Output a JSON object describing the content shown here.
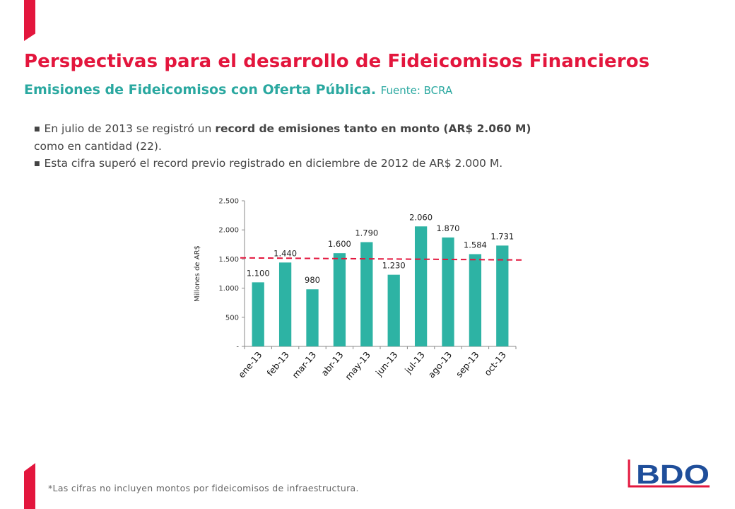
{
  "header": {
    "title": "Perspectivas para el desarrollo de Fideicomisos Financieros",
    "subtitle": "Emisiones de Fideicomisos con Oferta Pública.",
    "source": "Fuente: BCRA"
  },
  "bullets": {
    "b1_part1": "En julio de 2013 se registró un ",
    "b1_bold": "record de emisiones tanto en monto (AR$ 2.060 M)",
    "b1_part2": "como en cantidad (22).",
    "b2": "Esta cifra superó el record previo registrado en diciembre de 2012 de AR$ 2.000 M."
  },
  "chart_data": {
    "type": "bar",
    "categories": [
      "ene-13",
      "feb-13",
      "mar-13",
      "abr-13",
      "may-13",
      "jun-13",
      "jul-13",
      "ago-13",
      "sep-13",
      "oct-13"
    ],
    "values": [
      1100,
      1440,
      980,
      1600,
      1790,
      1230,
      2060,
      1870,
      1584,
      1731
    ],
    "data_labels": [
      "1.100",
      "1.440",
      "980",
      "1.600",
      "1.790",
      "1.230",
      "2.060",
      "1.870",
      "1.584",
      "1.731"
    ],
    "ylabel": "Millones de AR$",
    "ylim": [
      0,
      2500
    ],
    "yticks": [
      0,
      500,
      1000,
      1500,
      2000,
      2500
    ],
    "ytick_labels": [
      "-",
      "500",
      "1.000",
      "1.500",
      "2.000",
      "2.500"
    ],
    "reference_line": 1520,
    "grid": false,
    "colors": {
      "bar": "#2db3a4",
      "reference_line": "#e3163d"
    }
  },
  "footer": {
    "note": "*Las cifras no incluyen montos por fideicomisos de infraestructura.",
    "logo_text": "BDO"
  },
  "colors": {
    "brand_red": "#e3163d",
    "teal": "#2aa8a0",
    "logo_blue": "#1f4e9a"
  }
}
